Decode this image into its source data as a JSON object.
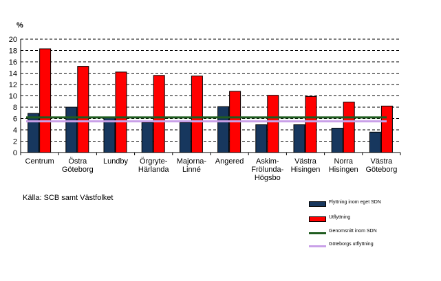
{
  "chart_data": {
    "type": "bar",
    "y_unit": "%",
    "ylim": [
      0,
      20
    ],
    "y_ticks": [
      0,
      2,
      4,
      6,
      8,
      10,
      12,
      14,
      16,
      18,
      20
    ],
    "grid": true,
    "legend_position": "bottom-right",
    "categories": [
      "Centrum",
      "Östra Göteborg",
      "Lundby",
      "Örgryte-Härlanda",
      "Majorna-Linné",
      "Angered",
      "Askim-Frölunda-Högsbo",
      "Västra Hisingen",
      "Norra Hisingen",
      "Västra Göteborg"
    ],
    "category_lines": [
      [
        "Centrum"
      ],
      [
        "Östra",
        "Göteborg"
      ],
      [
        "Lundby"
      ],
      [
        "Örgryte-",
        "Härlanda"
      ],
      [
        "Majorna-",
        "Linné"
      ],
      [
        "Angered"
      ],
      [
        "Askim-",
        "Frölunda-",
        "Högsbo"
      ],
      [
        "Västra",
        "Hisingen"
      ],
      [
        "Norra",
        "Hisingen"
      ],
      [
        "Västra",
        "Göteborg"
      ]
    ],
    "series": [
      {
        "name": "Flyttning inom eget SDN",
        "kind": "bar",
        "color": "#17375e",
        "values": [
          6.9,
          8.0,
          6.3,
          5.3,
          5.3,
          8.1,
          4.9,
          4.9,
          4.3,
          3.6
        ]
      },
      {
        "name": "Utflyttning",
        "kind": "bar",
        "color": "#ff0000",
        "values": [
          18.3,
          15.2,
          14.2,
          13.6,
          13.5,
          10.8,
          10.1,
          9.9,
          8.9,
          8.2
        ]
      },
      {
        "name": "Genomsnitt inom SDN",
        "kind": "line",
        "color": "#1f5c1f",
        "value": 6.2
      },
      {
        "name": "Göteborgs utflyttning",
        "kind": "line",
        "color": "#c9a0e8",
        "value": 5.5
      }
    ]
  },
  "source_text": "Källa:  SCB samt Västfolket"
}
